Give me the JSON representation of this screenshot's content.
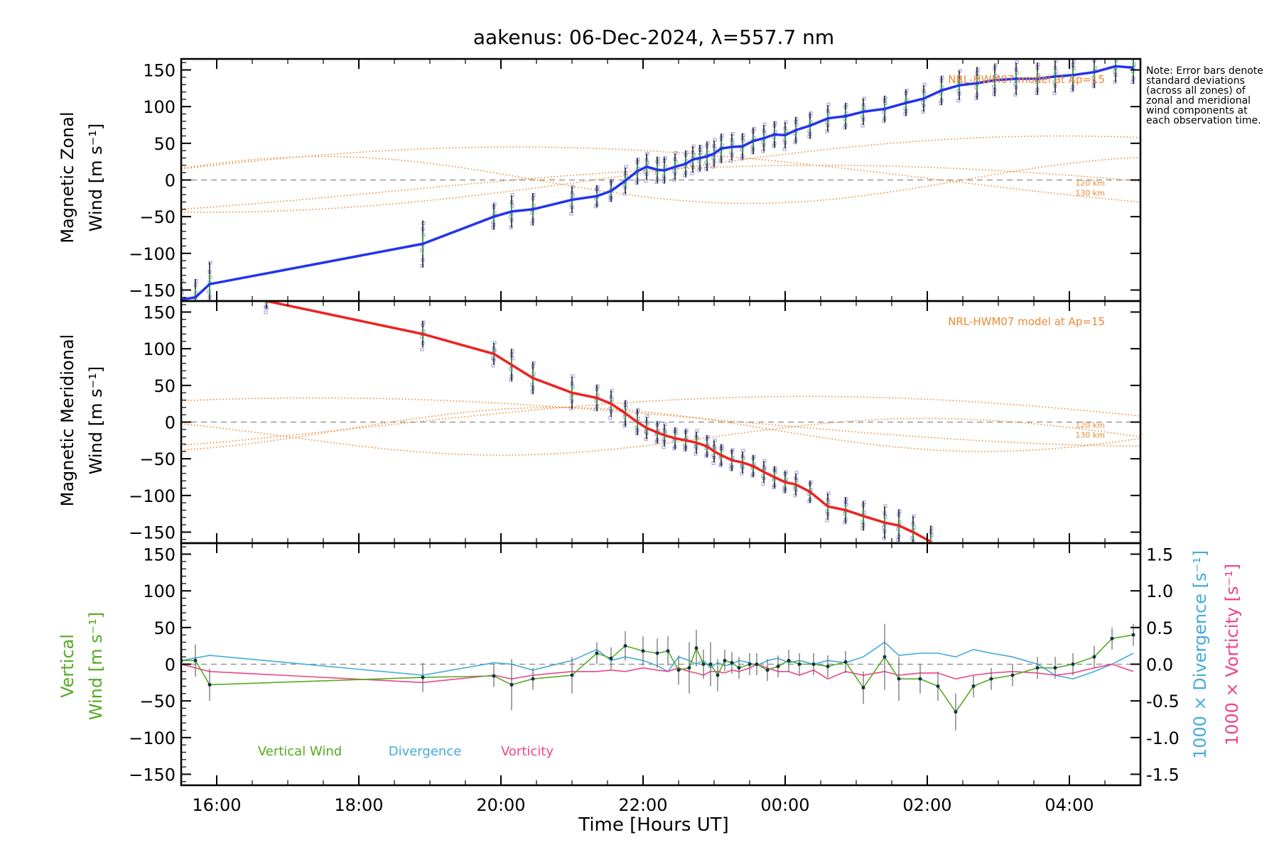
{
  "title": "aakenus: 06-Dec-2024, λ=557.7 nm",
  "note": "Note: Error bars denote standard deviations (across all zones) of zonal and meridional wind components at each observation time.",
  "colors": {
    "zonal": "#2233ee",
    "meridional": "#ee2222",
    "vertical": "#55aa22",
    "divergence": "#44aadd",
    "vorticity": "#ee4488",
    "model": "#ee8833",
    "zone_points": "#9999dd"
  },
  "chart_data": [
    {
      "type": "line",
      "panel": "zonal",
      "ylabel_line1": "Magnetic Zonal",
      "ylabel_line2": "Wind [m s⁻¹]",
      "ylim": [
        -165,
        165
      ],
      "yticks": [
        150,
        100,
        50,
        0,
        -50,
        -100,
        -150
      ],
      "model_label": "NRL-HWM07 model at Ap=15",
      "model_alt_labels": [
        "120 km",
        "130 km"
      ],
      "series": [
        {
          "x": [
            15.5,
            15.7,
            15.9,
            18.9,
            19.9,
            20.15,
            20.45,
            21.0,
            21.35,
            21.55,
            21.75,
            21.92,
            22.05,
            22.2,
            22.3,
            22.45,
            22.6,
            22.7,
            22.8,
            22.9,
            23.0,
            23.1,
            23.25,
            23.4,
            23.55,
            23.7,
            23.85,
            24.0,
            24.15,
            24.35,
            24.6,
            24.85,
            25.1,
            25.4,
            25.7,
            25.95,
            26.2,
            26.45,
            26.7,
            26.95,
            27.25,
            27.55,
            27.8,
            28.05,
            28.35,
            28.65,
            28.9
          ],
          "y": [
            -163,
            -160,
            -142,
            -87,
            -50,
            -43,
            -40,
            -27,
            -22,
            -15,
            -1,
            12,
            18,
            14,
            13,
            18,
            22,
            28,
            30,
            32,
            36,
            43,
            45,
            46,
            53,
            57,
            62,
            61,
            68,
            74,
            84,
            87,
            93,
            97,
            105,
            111,
            122,
            129,
            132,
            136,
            138,
            138,
            141,
            143,
            147,
            155,
            153
          ],
          "sd": [
            25,
            25,
            30,
            32,
            18,
            22,
            22,
            18,
            15,
            15,
            18,
            18,
            18,
            18,
            18,
            18,
            18,
            18,
            18,
            20,
            18,
            20,
            18,
            18,
            18,
            18,
            18,
            18,
            18,
            18,
            18,
            18,
            18,
            18,
            18,
            18,
            20,
            20,
            22,
            22,
            22,
            22,
            22,
            22,
            22,
            22,
            22
          ]
        }
      ],
      "model": [
        {
          "amp": 45,
          "phase": 20.2,
          "offset": 0,
          "period": 24
        },
        {
          "amp": 32,
          "phase": 17.5,
          "offset": 0,
          "period": 12
        },
        {
          "amp": 35,
          "phase": 24.5,
          "offset": -15,
          "period": 24
        },
        {
          "amp": 52,
          "phase": 27.9,
          "offset": 8,
          "period": 24
        }
      ]
    },
    {
      "type": "line",
      "panel": "meridional",
      "ylabel_line1": "Magnetic Meridional",
      "ylabel_line2": "Wind [m s⁻¹]",
      "ylim": [
        -165,
        165
      ],
      "yticks": [
        150,
        100,
        50,
        0,
        -50,
        -100,
        -150
      ],
      "model_label": "NRL-HWM07 model at Ap=15",
      "model_alt_labels": [
        "120 km",
        "130 km"
      ],
      "series": [
        {
          "x": [
            16.7,
            18.9,
            19.9,
            20.15,
            20.45,
            21.0,
            21.35,
            21.55,
            21.75,
            21.92,
            22.05,
            22.2,
            22.3,
            22.45,
            22.6,
            22.75,
            22.9,
            23.0,
            23.1,
            23.25,
            23.4,
            23.55,
            23.7,
            23.85,
            24.0,
            24.15,
            24.35,
            24.6,
            24.85,
            25.1,
            25.4,
            25.6,
            25.8,
            26.05
          ],
          "y": [
            165,
            120,
            93,
            78,
            60,
            40,
            33,
            25,
            12,
            0,
            -8,
            -14,
            -18,
            -22,
            -25,
            -28,
            -33,
            -40,
            -45,
            -52,
            -55,
            -60,
            -68,
            -75,
            -82,
            -85,
            -95,
            -115,
            -120,
            -128,
            -137,
            -141,
            -150,
            -163
          ],
          "sd": [
            10,
            18,
            15,
            22,
            22,
            22,
            18,
            18,
            18,
            18,
            15,
            15,
            15,
            15,
            15,
            15,
            15,
            15,
            15,
            15,
            15,
            15,
            15,
            15,
            15,
            15,
            15,
            18,
            18,
            20,
            22,
            22,
            22,
            22
          ]
        }
      ],
      "model": [
        {
          "amp": 33,
          "phase": 17.4,
          "offset": 0,
          "period": 24
        },
        {
          "amp": 40,
          "phase": 24.3,
          "offset": -5,
          "period": 24
        },
        {
          "amp": 30,
          "phase": 20.8,
          "offset": -10,
          "period": 12
        },
        {
          "amp": 25,
          "phase": 26.0,
          "offset": -20,
          "period": 12
        }
      ]
    },
    {
      "type": "line",
      "panel": "vertical",
      "ylabel_line1": "Vertical",
      "ylabel_line2": "Wind [m s⁻¹]",
      "ylim": [
        -165,
        165
      ],
      "yticks": [
        150,
        100,
        50,
        0,
        -50,
        -100,
        -150
      ],
      "y2lim": [
        -1.65,
        1.65
      ],
      "y2ticks": [
        1.5,
        1.0,
        0.5,
        0.0,
        -0.5,
        -1.0,
        -1.5
      ],
      "y2label_divergence": "1000 × Divergence [s⁻¹]",
      "y2label_vorticity": "1000 × Vorticity [s⁻¹]",
      "legend": [
        "Vertical Wind",
        "Divergence",
        "Vorticity"
      ],
      "series": [
        {
          "name": "Vertical Wind",
          "x": [
            15.5,
            15.7,
            15.9,
            18.9,
            19.9,
            20.15,
            20.45,
            21.0,
            21.35,
            21.55,
            21.75,
            22.0,
            22.2,
            22.35,
            22.5,
            22.65,
            22.75,
            22.85,
            22.95,
            23.05,
            23.15,
            23.25,
            23.35,
            23.5,
            23.6,
            23.75,
            23.9,
            24.05,
            24.2,
            24.4,
            24.6,
            24.85,
            25.1,
            25.4,
            25.6,
            25.9,
            26.15,
            26.4,
            26.65,
            26.9,
            27.2,
            27.55,
            27.8,
            28.05,
            28.35,
            28.6,
            28.9
          ],
          "y": [
            5,
            5,
            -28,
            -18,
            -16,
            -28,
            -20,
            -15,
            15,
            8,
            25,
            18,
            15,
            18,
            -8,
            -5,
            22,
            0,
            0,
            -15,
            5,
            2,
            -5,
            0,
            0,
            -8,
            -3,
            5,
            0,
            0,
            -3,
            3,
            -32,
            10,
            -20,
            -20,
            -30,
            -65,
            -30,
            -20,
            -15,
            -5,
            -5,
            0,
            10,
            35,
            40
          ],
          "sd": [
            15,
            22,
            22,
            20,
            15,
            35,
            15,
            25,
            15,
            15,
            20,
            20,
            20,
            20,
            20,
            35,
            25,
            20,
            30,
            22,
            15,
            15,
            15,
            15,
            15,
            15,
            15,
            15,
            15,
            15,
            15,
            15,
            22,
            45,
            30,
            20,
            20,
            25,
            15,
            15,
            15,
            15,
            15,
            15,
            15,
            15,
            15
          ]
        },
        {
          "name": "Divergence",
          "x": [
            15.5,
            15.9,
            18.9,
            19.9,
            20.15,
            20.45,
            21.0,
            21.35,
            21.55,
            21.75,
            22.0,
            22.2,
            22.35,
            22.5,
            22.65,
            22.75,
            22.85,
            22.95,
            23.05,
            23.15,
            23.25,
            23.35,
            23.5,
            23.6,
            23.75,
            23.9,
            24.05,
            24.2,
            24.4,
            24.6,
            24.85,
            25.1,
            25.4,
            25.6,
            25.9,
            26.15,
            26.4,
            26.65,
            26.9,
            27.2,
            27.55,
            27.8,
            28.05,
            28.35,
            28.6,
            28.9
          ],
          "y": [
            0.05,
            0.12,
            -0.15,
            0.02,
            0.0,
            -0.08,
            0.05,
            0.2,
            0.05,
            0.1,
            0.05,
            -0.02,
            -0.1,
            0.1,
            0.05,
            0.0,
            0.05,
            -0.05,
            0.02,
            -0.02,
            0.0,
            0.05,
            0.02,
            -0.02,
            0.05,
            0.08,
            0.02,
            0.05,
            0.0,
            0.05,
            0.02,
            0.1,
            0.3,
            0.12,
            0.15,
            0.15,
            0.1,
            0.2,
            0.15,
            0.1,
            0.0,
            -0.15,
            -0.2,
            -0.1,
            0.0,
            0.15
          ]
        },
        {
          "name": "Vorticity",
          "x": [
            15.5,
            15.9,
            18.9,
            19.9,
            20.15,
            20.45,
            21.0,
            21.35,
            21.55,
            21.75,
            22.0,
            22.2,
            22.35,
            22.5,
            22.65,
            22.75,
            22.85,
            22.95,
            23.05,
            23.15,
            23.25,
            23.35,
            23.5,
            23.6,
            23.75,
            23.9,
            24.05,
            24.2,
            24.4,
            24.6,
            24.85,
            25.1,
            25.4,
            25.6,
            25.9,
            26.15,
            26.4,
            26.65,
            26.9,
            27.2,
            27.55,
            27.8,
            28.05,
            28.35,
            28.6,
            28.9
          ],
          "y": [
            0.0,
            -0.1,
            -0.25,
            -0.15,
            -0.2,
            -0.15,
            -0.1,
            -0.1,
            -0.08,
            -0.1,
            -0.05,
            -0.08,
            -0.1,
            -0.05,
            -0.1,
            -0.12,
            -0.15,
            -0.1,
            -0.1,
            -0.12,
            -0.08,
            -0.1,
            -0.05,
            0.0,
            -0.05,
            -0.1,
            -0.1,
            -0.15,
            -0.08,
            -0.2,
            -0.1,
            -0.15,
            -0.1,
            -0.15,
            -0.12,
            -0.12,
            -0.2,
            -0.15,
            -0.12,
            -0.1,
            -0.12,
            -0.15,
            -0.12,
            -0.05,
            0.0,
            -0.1
          ]
        }
      ]
    }
  ],
  "x_axis": {
    "label": "Time [Hours UT]",
    "xlim": [
      15.5,
      29.0
    ],
    "ticks": [
      {
        "value": 16,
        "label": "16:00"
      },
      {
        "value": 18,
        "label": "18:00"
      },
      {
        "value": 20,
        "label": "20:00"
      },
      {
        "value": 22,
        "label": "22:00"
      },
      {
        "value": 24,
        "label": "00:00"
      },
      {
        "value": 26,
        "label": "02:00"
      },
      {
        "value": 28,
        "label": "04:00"
      }
    ]
  }
}
